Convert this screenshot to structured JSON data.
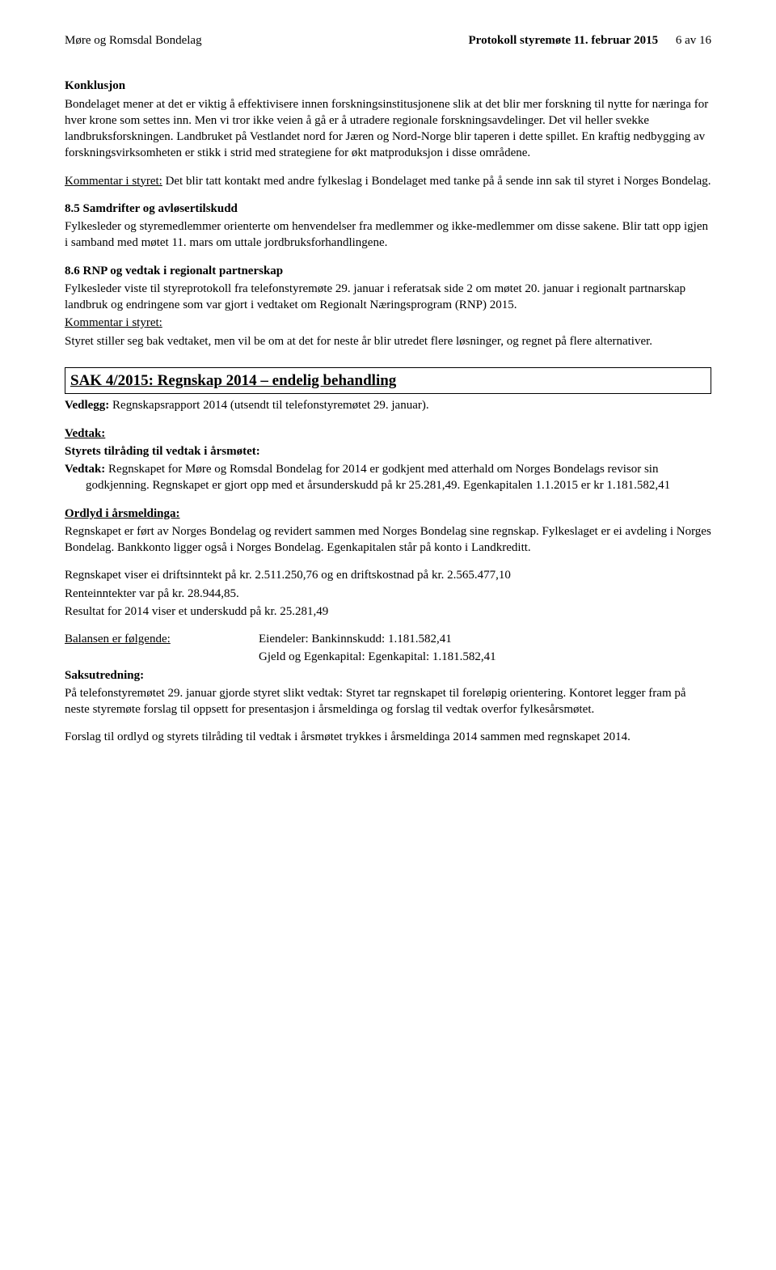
{
  "header": {
    "left": "Møre og Romsdal Bondelag",
    "right_bold": "Protokoll styremøte 11. februar 2015",
    "page_indicator": "6 av 16"
  },
  "konklusjon": {
    "title": "Konklusjon",
    "body": "Bondelaget mener at det er viktig å effektivisere innen forskningsinstitusjonene slik at det blir mer forskning til nytte for næringa for hver krone som settes inn. Men vi tror ikke veien å gå er å utradere regionale forskningsavdelinger. Det vil heller svekke landbruksforskningen. Landbruket på Vestlandet nord for Jæren og Nord-Norge blir taperen i dette spillet. En kraftig nedbygging av forskningsvirksomheten er stikk i strid med strategiene for økt matproduksjon i disse områdene."
  },
  "kommentar1": {
    "label": "Kommentar i styret:",
    "text": " Det blir tatt kontakt med andre fylkeslag i Bondelaget med tanke på å sende inn sak til styret i Norges Bondelag."
  },
  "s85": {
    "title": "8.5 Samdrifter og avløsertilskudd",
    "body": "Fylkesleder og styremedlemmer orienterte om henvendelser fra medlemmer og ikke-medlemmer om disse sakene. Blir tatt opp igjen i samband med møtet 11. mars om uttale jordbruksforhandlingene."
  },
  "s86": {
    "title": "8.6 RNP og vedtak i regionalt partnerskap",
    "body1": "Fylkesleder viste til styreprotokoll fra telefonstyremøte 29. januar i referatsak side 2 om møtet 20. januar i regionalt partnarskap landbruk og endringene som var gjort i vedtaket om Regionalt Næringsprogram  (RNP) 2015.",
    "kommentar_label": "Kommentar i styret:",
    "body2": "Styret stiller seg bak vedtaket, men vil be om at det for neste år blir utredet flere løsninger, og regnet på flere alternativer."
  },
  "sak4": {
    "title": "SAK 4/2015: Regnskap 2014 – endelig behandling",
    "vedlegg_label": "Vedlegg:",
    "vedlegg_text": " Regnskapsrapport 2014 (utsendt til telefonstyremøtet 29. januar).",
    "vedtak_label": "Vedtak:",
    "styrets_label": "Styrets tilråding til vedtak i årsmøtet:",
    "vedtak2_label": "Vedtak:",
    "vedtak2_text": " Regnskapet for Møre og Romsdal Bondelag for 2014 er godkjent med atterhald om Norges Bondelags revisor sin godkjenning. Regnskapet er gjort opp med et årsunderskudd på kr 25.281,49. Egenkapitalen 1.1.2015 er kr 1.181.582,41",
    "ordlyd_label": "Ordlyd i årsmeldinga:",
    "ordlyd_body": "Regnskapet er ført av Norges Bondelag og revidert sammen med Norges Bondelag sine regnskap. Fylkeslaget er ei avdeling i Norges Bondelag. Bankkonto ligger også i Norges Bondelag. Egenkapitalen står på konto i Landkreditt.",
    "line1": "Regnskapet viser ei driftsinntekt på kr. 2.511.250,76 og en driftskostnad på kr. 2.565.477,10",
    "line2": "Renteinntekter var på kr. 28.944,85.",
    "line3": "Resultat for 2014 viser et underskudd på kr. 25.281,49",
    "balansen_label": "Balansen er følgende:",
    "balansen_r1": "Eiendeler: Bankinnskudd: 1.181.582,41",
    "balansen_r2": "Gjeld og Egenkapital: Egenkapital: 1.181.582,41",
    "saksutredning_label": "Saksutredning:",
    "saksutredning_body": "På telefonstyremøtet 29. januar gjorde styret slikt vedtak: Styret tar regnskapet til foreløpig orientering. Kontoret legger fram på neste styremøte forslag til oppsett for presentasjon i årsmeldinga og forslag til vedtak overfor fylkesårsmøtet.",
    "forslag_body": "Forslag til ordlyd og styrets tilråding til vedtak i årsmøtet trykkes i årsmeldinga 2014 sammen med regnskapet 2014."
  }
}
